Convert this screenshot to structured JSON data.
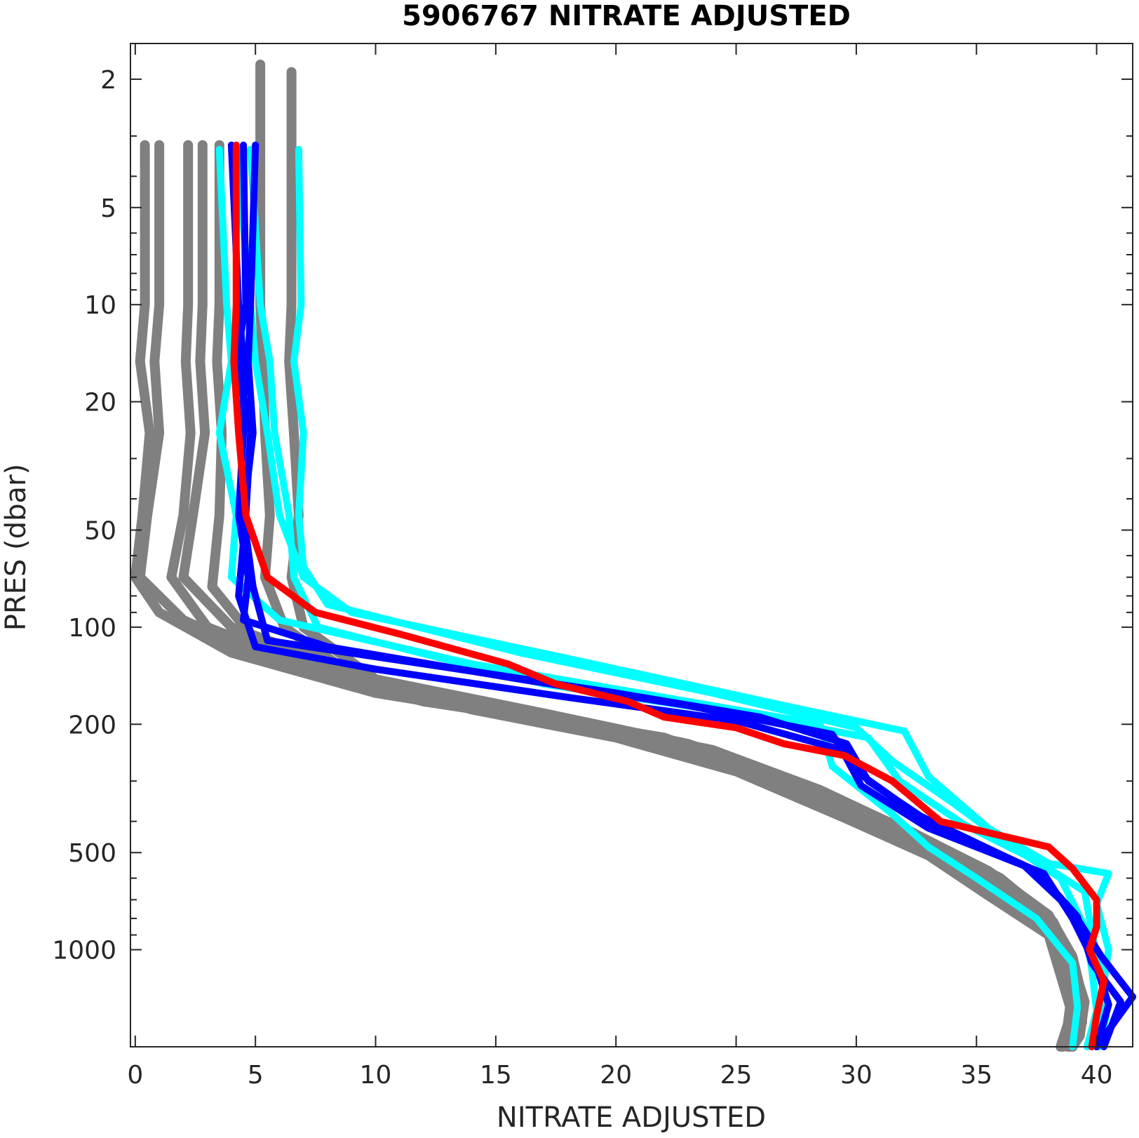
{
  "chart_data": {
    "type": "line",
    "title": "5906767  NITRATE ADJUSTED",
    "xlabel": "NITRATE ADJUSTED",
    "ylabel": "PRES (dbar)",
    "xlim": [
      -0.2,
      41.5
    ],
    "ylim": [
      1.55,
      2000
    ],
    "y_scale": "log",
    "y_reversed": true,
    "grid": false,
    "x_ticks": [
      0,
      5,
      10,
      15,
      20,
      25,
      30,
      35,
      40
    ],
    "x_tick_labels": [
      "0",
      "5",
      "10",
      "15",
      "20",
      "25",
      "30",
      "35",
      "40"
    ],
    "y_ticks": [
      2,
      5,
      10,
      20,
      50,
      100,
      200,
      500,
      1000
    ],
    "y_tick_labels": [
      "2",
      "5",
      "10",
      "20",
      "50",
      "100",
      "200",
      "500",
      "1000"
    ],
    "colors": {
      "gray": "#808080",
      "cyan": "#00ffff",
      "blue": "#0000ff",
      "red": "#ff0000",
      "axis": "#262626"
    },
    "series": [
      {
        "color": "gray",
        "x": [
          0.4,
          0.4,
          0.2,
          0.6,
          0.3,
          0.0,
          1.0,
          4.0,
          10.0,
          18.0,
          25.0,
          30.0,
          33.0,
          36.0,
          38.0,
          38.5,
          39.0,
          38.8
        ],
        "y": [
          3.2,
          10,
          15,
          25,
          45,
          70,
          90,
          120,
          160,
          200,
          260,
          380,
          500,
          650,
          900,
          1200,
          1600,
          2000
        ]
      },
      {
        "color": "gray",
        "x": [
          1.0,
          1.0,
          0.8,
          1.0,
          0.5,
          0.2,
          2.0,
          6.0,
          12.0,
          20.0,
          26.0,
          31.0,
          34.0,
          37.0,
          38.5,
          39.0,
          38.8,
          38.5
        ],
        "y": [
          3.2,
          10,
          15,
          25,
          45,
          70,
          95,
          130,
          170,
          210,
          280,
          400,
          520,
          700,
          950,
          1300,
          1700,
          2000
        ]
      },
      {
        "color": "gray",
        "x": [
          2.2,
          2.2,
          2.1,
          2.3,
          2.0,
          1.5,
          3.0,
          8.0,
          15.0,
          22.0,
          27.0,
          32.0,
          35.0,
          37.5,
          38.5,
          39.2,
          39.0,
          38.6
        ],
        "y": [
          3.2,
          10,
          15,
          25,
          45,
          70,
          100,
          140,
          180,
          220,
          300,
          420,
          550,
          750,
          1000,
          1350,
          1750,
          2000
        ]
      },
      {
        "color": "gray",
        "x": [
          2.8,
          2.8,
          2.7,
          2.9,
          2.4,
          2.0,
          4.0,
          10.0,
          17.0,
          23.0,
          28.0,
          32.5,
          35.5,
          38.0,
          39.0,
          39.4,
          39.2,
          38.8
        ],
        "y": [
          3.2,
          10,
          15,
          25,
          45,
          70,
          100,
          145,
          185,
          230,
          310,
          440,
          570,
          780,
          1050,
          1400,
          1800,
          2000
        ]
      },
      {
        "color": "gray",
        "x": [
          3.5,
          3.5,
          3.4,
          3.6,
          3.5,
          3.2,
          5.0,
          11.0,
          18.0,
          24.0,
          28.5,
          33.0,
          36.0,
          38.2,
          39.0,
          39.5,
          39.3,
          39.0
        ],
        "y": [
          3.2,
          10,
          15,
          25,
          45,
          75,
          110,
          155,
          195,
          240,
          320,
          460,
          600,
          820,
          1100,
          1450,
          1850,
          2000
        ]
      },
      {
        "color": "gray",
        "x": [
          5.2,
          5.2,
          5.3,
          5.4,
          5.6,
          5.4,
          6.2,
          9.0,
          14.0,
          20.0,
          25.0,
          29.5,
          33.0,
          35.5,
          38.0,
          39.0,
          39.2,
          38.9
        ],
        "y": [
          1.8,
          10,
          15,
          25,
          45,
          70,
          100,
          140,
          180,
          220,
          280,
          390,
          510,
          680,
          900,
          1250,
          1650,
          2000
        ]
      },
      {
        "color": "gray",
        "x": [
          6.5,
          6.5,
          6.4,
          6.6,
          6.8,
          6.5,
          7.0,
          10.0,
          15.5,
          21.0,
          26.0,
          30.5,
          33.5,
          36.0,
          38.3,
          39.2,
          39.4,
          39.0
        ],
        "y": [
          1.9,
          10,
          15,
          25,
          45,
          70,
          100,
          145,
          185,
          225,
          290,
          400,
          520,
          700,
          930,
          1280,
          1680,
          2000
        ]
      },
      {
        "color": "cyan",
        "x": [
          3.5,
          3.8,
          4.0,
          3.5,
          4.2,
          4.0,
          6.0,
          14.0,
          23.0,
          28.5,
          29.0,
          31.5,
          33.0,
          35.0,
          37.5,
          39.0,
          39.2,
          39.0
        ],
        "y": [
          3.3,
          10,
          15,
          25,
          45,
          70,
          95,
          130,
          170,
          200,
          270,
          380,
          480,
          600,
          800,
          1100,
          1500,
          2000
        ]
      },
      {
        "color": "cyan",
        "x": [
          6.8,
          6.9,
          6.6,
          7.0,
          6.8,
          7.0,
          8.0,
          16.0,
          24.0,
          30.0,
          31.5,
          34.0,
          36.5,
          38.5,
          39.5,
          39.8,
          40.0,
          39.6
        ],
        "y": [
          3.3,
          10,
          15,
          25,
          45,
          65,
          85,
          120,
          160,
          205,
          260,
          350,
          480,
          600,
          850,
          1150,
          1550,
          2000
        ]
      },
      {
        "color": "cyan",
        "x": [
          4.2,
          4.8,
          5.0,
          5.5,
          6.0,
          7.0,
          9.0,
          18.0,
          27.0,
          32.0,
          33.0,
          35.5,
          38.0,
          40.5,
          40.0,
          40.5,
          40.2,
          40.0
        ],
        "y": [
          3.3,
          10,
          15,
          25,
          45,
          70,
          90,
          125,
          175,
          210,
          290,
          420,
          540,
          580,
          720,
          1000,
          1400,
          2000
        ]
      },
      {
        "color": "cyan",
        "x": [
          4.8,
          5.2,
          5.6,
          5.8,
          6.4,
          6.6,
          7.6,
          17.0,
          26.0,
          30.5,
          31.8,
          34.5,
          37.5,
          39.5,
          39.8,
          40.2,
          40.4,
          40.1
        ],
        "y": [
          3.3,
          10,
          15,
          25,
          45,
          70,
          100,
          150,
          190,
          220,
          300,
          410,
          530,
          660,
          880,
          1200,
          1600,
          2000
        ]
      },
      {
        "color": "blue",
        "x": [
          4.0,
          4.3,
          4.5,
          4.5,
          4.3,
          4.7,
          4.5,
          8.0,
          16.0,
          23.0,
          29.0,
          30.0,
          32.5,
          37.0,
          39.0,
          40.2,
          41.5,
          40.0
        ],
        "y": [
          3.2,
          10,
          15,
          25,
          45,
          70,
          95,
          115,
          145,
          175,
          215,
          280,
          380,
          550,
          760,
          1050,
          1400,
          2000
        ]
      },
      {
        "color": "blue",
        "x": [
          5.0,
          4.8,
          4.7,
          4.9,
          4.5,
          4.9,
          5.5,
          12.0,
          20.0,
          26.0,
          29.6,
          30.5,
          33.0,
          37.5,
          39.2,
          39.8,
          41.0,
          40.3
        ],
        "y": [
          3.2,
          10,
          15,
          25,
          45,
          75,
          110,
          130,
          160,
          190,
          230,
          300,
          400,
          570,
          790,
          1100,
          1450,
          2000
        ]
      },
      {
        "color": "blue",
        "x": [
          4.5,
          4.6,
          4.2,
          4.8,
          4.6,
          4.3,
          5.0,
          10.0,
          18.0,
          25.0,
          29.4,
          30.2,
          33.0,
          37.8,
          39.0,
          40.0,
          40.5,
          40.0
        ],
        "y": [
          3.2,
          10,
          15,
          25,
          45,
          80,
          115,
          135,
          165,
          195,
          240,
          310,
          420,
          580,
          800,
          1130,
          1480,
          2000
        ]
      },
      {
        "color": "red",
        "x": [
          4.2,
          4.2,
          4.1,
          4.3,
          4.6,
          5.5,
          7.5,
          11.0,
          15.5,
          17.5,
          20.5,
          22.0,
          25.0,
          27.0,
          29.5,
          31.5,
          33.5,
          38.0,
          39.0,
          40.0,
          40.0,
          39.7,
          40.3,
          40.0,
          39.8
        ],
        "y": [
          3.2,
          10,
          15,
          25,
          45,
          70,
          90,
          105,
          130,
          150,
          170,
          190,
          205,
          230,
          250,
          300,
          400,
          480,
          560,
          700,
          850,
          1000,
          1250,
          1600,
          2000
        ]
      }
    ]
  }
}
